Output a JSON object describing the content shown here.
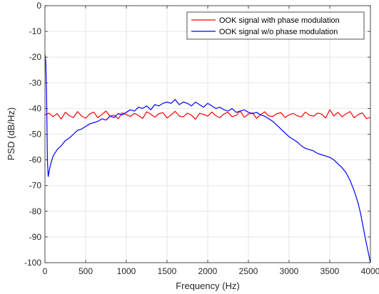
{
  "chart_data": {
    "type": "line",
    "xlabel": "Frequency (Hz)",
    "ylabel": "PSD (dB/Hz)",
    "xlim": [
      0,
      4000
    ],
    "ylim": [
      -100,
      0
    ],
    "xticks": [
      "0",
      "500",
      "1000",
      "1500",
      "2000",
      "2500",
      "3000",
      "3500",
      "4000"
    ],
    "yticks": [
      "0",
      "-10",
      "-20",
      "-30",
      "-40",
      "-50",
      "-60",
      "-70",
      "-80",
      "-90",
      "-100"
    ],
    "grid": true,
    "legend_position": "top-right",
    "series": [
      {
        "name": "OOK signal with phase modulation",
        "color": "#ff0000",
        "x": [
          0,
          50,
          100,
          150,
          200,
          250,
          300,
          350,
          400,
          450,
          500,
          550,
          600,
          650,
          700,
          750,
          800,
          850,
          900,
          950,
          1000,
          1050,
          1100,
          1150,
          1200,
          1250,
          1300,
          1350,
          1400,
          1450,
          1500,
          1550,
          1600,
          1650,
          1700,
          1750,
          1800,
          1850,
          1900,
          1950,
          2000,
          2050,
          2100,
          2150,
          2200,
          2250,
          2300,
          2350,
          2400,
          2450,
          2500,
          2550,
          2600,
          2650,
          2700,
          2750,
          2800,
          2850,
          2900,
          2950,
          3000,
          3050,
          3100,
          3150,
          3200,
          3250,
          3300,
          3350,
          3400,
          3450,
          3500,
          3550,
          3600,
          3650,
          3700,
          3750,
          3800,
          3850,
          3900,
          3950,
          4000
        ],
        "y": [
          -42.5,
          -41.8,
          -43.2,
          -42.0,
          -44.1,
          -41.5,
          -42.8,
          -43.5,
          -41.2,
          -42.9,
          -43.8,
          -42.1,
          -41.4,
          -43.6,
          -42.3,
          -41.0,
          -43.0,
          -42.6,
          -44.0,
          -41.7,
          -42.4,
          -43.1,
          -41.9,
          -42.7,
          -43.9,
          -41.3,
          -42.2,
          -43.4,
          -42.0,
          -41.6,
          -43.7,
          -42.5,
          -41.1,
          -42.9,
          -43.3,
          -41.8,
          -42.6,
          -44.2,
          -41.9,
          -42.3,
          -43.0,
          -41.4,
          -42.8,
          -43.6,
          -42.1,
          -41.5,
          -43.2,
          -42.7,
          -41.0,
          -43.4,
          -42.2,
          -41.7,
          -43.8,
          -42.4,
          -41.3,
          -42.9,
          -43.1,
          -42.0,
          -41.6,
          -43.5,
          -42.5,
          -41.9,
          -42.8,
          -43.3,
          -41.4,
          -42.6,
          -43.0,
          -41.8,
          -42.2,
          -43.7,
          -40.5,
          -42.9,
          -41.5,
          -43.2,
          -42.1,
          -41.2,
          -43.6,
          -42.4,
          -41.7,
          -43.9,
          -43.5
        ]
      },
      {
        "name": "OOK signal w/o phase modulation",
        "color": "#0000ff",
        "x": [
          0,
          10,
          20,
          30,
          40,
          60,
          80,
          100,
          150,
          200,
          250,
          300,
          350,
          400,
          450,
          500,
          550,
          600,
          650,
          700,
          750,
          800,
          850,
          900,
          950,
          1000,
          1050,
          1100,
          1150,
          1200,
          1250,
          1300,
          1350,
          1400,
          1450,
          1500,
          1550,
          1600,
          1650,
          1700,
          1750,
          1800,
          1850,
          1900,
          1950,
          2000,
          2050,
          2100,
          2150,
          2200,
          2250,
          2300,
          2350,
          2400,
          2450,
          2500,
          2550,
          2600,
          2650,
          2700,
          2750,
          2800,
          2850,
          2900,
          2950,
          3000,
          3050,
          3100,
          3150,
          3200,
          3250,
          3300,
          3350,
          3400,
          3450,
          3500,
          3550,
          3600,
          3650,
          3700,
          3750,
          3800,
          3850,
          3880,
          3910,
          3940,
          3960,
          3980,
          4000
        ],
        "y": [
          -19.0,
          -22.0,
          -35.0,
          -60.0,
          -66.5,
          -63.0,
          -60.5,
          -58.5,
          -56.0,
          -54.5,
          -52.5,
          -51.5,
          -50.0,
          -48.5,
          -48.0,
          -47.0,
          -46.0,
          -45.5,
          -45.0,
          -44.0,
          -44.5,
          -43.0,
          -43.5,
          -42.0,
          -42.5,
          -41.5,
          -40.5,
          -41.0,
          -39.5,
          -40.0,
          -39.0,
          -40.5,
          -38.5,
          -39.0,
          -38.0,
          -37.5,
          -38.0,
          -36.5,
          -38.5,
          -37.5,
          -38.0,
          -39.0,
          -37.5,
          -38.5,
          -39.5,
          -38.0,
          -39.0,
          -40.0,
          -39.5,
          -40.5,
          -41.0,
          -40.0,
          -41.5,
          -41.0,
          -40.5,
          -41.5,
          -42.0,
          -41.5,
          -42.5,
          -43.0,
          -44.0,
          -45.0,
          -46.5,
          -48.0,
          -49.5,
          -51.0,
          -52.0,
          -53.0,
          -54.5,
          -55.5,
          -56.0,
          -56.5,
          -57.5,
          -58.0,
          -58.5,
          -59.0,
          -60.0,
          -61.5,
          -63.0,
          -65.0,
          -68.0,
          -72.0,
          -77.0,
          -81.0,
          -86.0,
          -91.0,
          -94.0,
          -97.0,
          -100.0
        ]
      }
    ]
  }
}
